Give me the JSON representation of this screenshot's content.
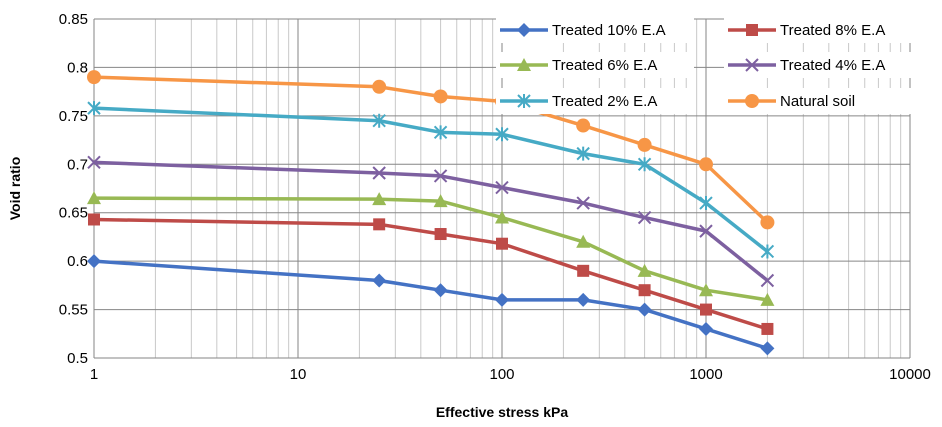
{
  "chart_data": {
    "type": "line",
    "x_scale": "log",
    "xlabel": "Effective stress kPa",
    "ylabel": "Void ratio",
    "xlim": [
      1,
      10000
    ],
    "ylim": [
      0.5,
      0.85
    ],
    "x_ticks": [
      1,
      10,
      100,
      1000,
      10000
    ],
    "x_tick_labels": [
      "1",
      "10",
      "100",
      "1000",
      "10000"
    ],
    "y_ticks": [
      0.5,
      0.55,
      0.6,
      0.65,
      0.7,
      0.75,
      0.8,
      0.85
    ],
    "y_tick_labels": [
      "0.5",
      "0.55",
      "0.6",
      "0.65",
      "0.7",
      "0.75",
      "0.8",
      "0.85"
    ],
    "grid": true,
    "legend_position": "top-right",
    "x": [
      1,
      25,
      50,
      100,
      250,
      500,
      1000,
      2000
    ],
    "series": [
      {
        "name": "Treated 10% E.A",
        "color": "#4472C4",
        "marker": "diamond",
        "values": [
          0.6,
          0.58,
          0.57,
          0.56,
          0.56,
          0.55,
          0.53,
          0.51
        ]
      },
      {
        "name": "Treated 8% E.A",
        "color": "#BE4B48",
        "marker": "square",
        "values": [
          0.643,
          0.638,
          0.628,
          0.618,
          0.59,
          0.57,
          0.55,
          0.53
        ]
      },
      {
        "name": "Treated 6% E.A",
        "color": "#98B954",
        "marker": "triangle",
        "values": [
          0.665,
          0.664,
          0.662,
          0.645,
          0.62,
          0.59,
          0.57,
          0.56
        ]
      },
      {
        "name": "Treated 4% E.A",
        "color": "#7D60A0",
        "marker": "x",
        "values": [
          0.702,
          0.691,
          0.688,
          0.676,
          0.66,
          0.645,
          0.631,
          0.58
        ]
      },
      {
        "name": "Treated 2% E.A",
        "color": "#46AAC5",
        "marker": "star",
        "values": [
          0.758,
          0.745,
          0.733,
          0.731,
          0.711,
          0.7,
          0.66,
          0.61
        ]
      },
      {
        "name": "Natural soil",
        "color": "#F79646",
        "marker": "circle",
        "values": [
          0.79,
          0.78,
          0.77,
          0.765,
          0.74,
          0.72,
          0.7,
          0.64
        ]
      }
    ]
  }
}
